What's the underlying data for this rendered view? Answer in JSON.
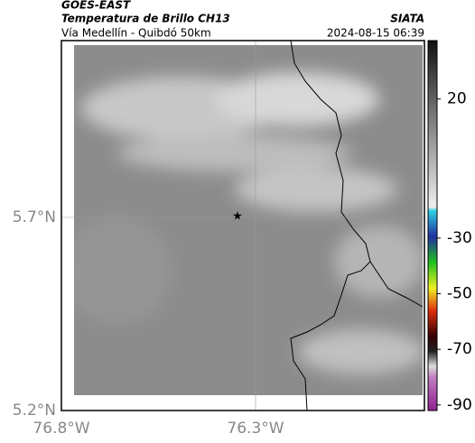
{
  "header": {
    "source": "GOES-EAST",
    "product": "Temperatura de Brillo CH13",
    "location": "Vía Medellín - Quibdó 50km",
    "org": "SIATA",
    "datetime": "2024-08-15 06:39"
  },
  "map": {
    "lat_labels": [
      "5.7°N",
      "5.2°N"
    ],
    "lon_labels": [
      "76.8°W",
      "76.3°W"
    ]
  },
  "colorbar": {
    "lim": [
      41,
      -92
    ],
    "ticks": [
      20,
      -30,
      -50,
      -70,
      -90
    ]
  }
}
